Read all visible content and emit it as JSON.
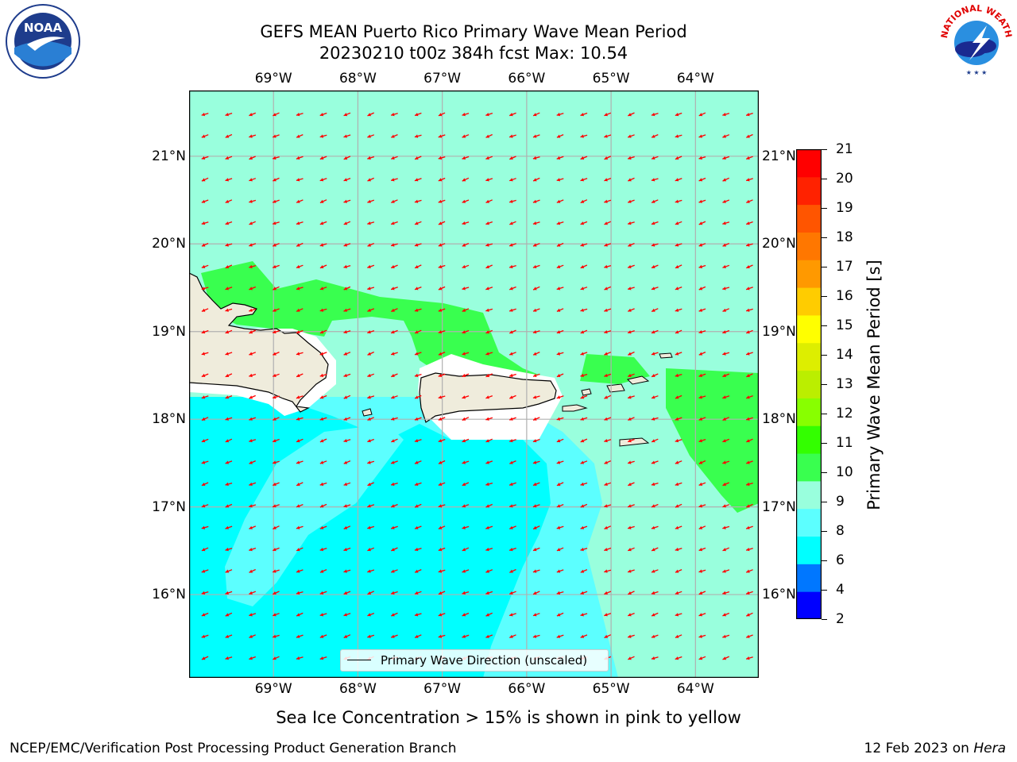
{
  "title": {
    "line1": "GEFS MEAN Puerto Rico Primary Wave Mean Period",
    "line2": "20230210 t00z 384h fcst   Max: 10.54"
  },
  "map": {
    "lon_labels": [
      "69°W",
      "68°W",
      "67°W",
      "66°W",
      "65°W",
      "64°W"
    ],
    "lat_labels": [
      "21°N",
      "20°N",
      "19°N",
      "18°N",
      "17°N",
      "16°N"
    ],
    "lon_values": [
      -69,
      -68,
      -67,
      -66,
      -65,
      -64
    ],
    "lat_values": [
      21,
      20,
      19,
      18,
      17,
      16
    ],
    "lon_range": [
      -70,
      -63.25
    ],
    "lat_range": [
      15.05,
      21.75
    ],
    "arrow_color": "#ff0000",
    "land_color": "#efecdc",
    "gridlines": true
  },
  "colorbar": {
    "title": "Primary Wave Mean Period [s]",
    "ticks": [
      "21",
      "20",
      "19",
      "18",
      "17",
      "16",
      "15",
      "14",
      "13",
      "12",
      "11",
      "10",
      "9",
      "8",
      "6",
      "4",
      "2"
    ],
    "colors": [
      "#0000ff",
      "#0077ff",
      "#00ffff",
      "#5cffff",
      "#99ffdd",
      "#39ff4f",
      "#33ff00",
      "#88ff00",
      "#bbee00",
      "#ddee00",
      "#ffff00",
      "#ffcc00",
      "#ff9900",
      "#ff7700",
      "#ff5500",
      "#ff2200",
      "#ff0000"
    ]
  },
  "legend": {
    "label": "Primary Wave Direction (unscaled)"
  },
  "caption": "Sea Ice Concentration > 15% is shown in pink to yellow",
  "footer": {
    "left": "NCEP/EMC/Verification Post Processing Product Generation Branch",
    "right_date": "12 Feb 2023 on ",
    "right_host": "Hera"
  },
  "logos": {
    "left": "NOAA",
    "right": "NATIONAL WEATHER SERVICE"
  }
}
